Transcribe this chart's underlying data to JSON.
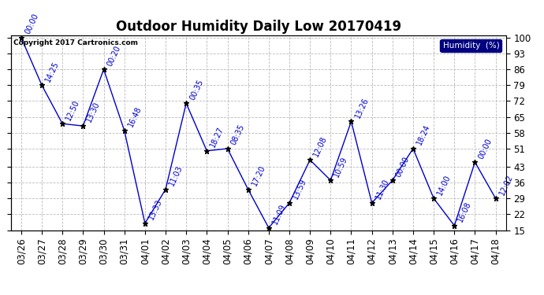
{
  "title": "Outdoor Humidity Daily Low 20170419",
  "copyright": "Copyright 2017 Cartronics.com",
  "legend_label": "Humidity  (%)",
  "ylabel_right": [
    "100",
    "93",
    "86",
    "79",
    "72",
    "65",
    "58",
    "51",
    "43",
    "36",
    "29",
    "22",
    "15"
  ],
  "ylim": [
    15,
    101
  ],
  "yticks": [
    15,
    22,
    29,
    36,
    43,
    51,
    58,
    65,
    72,
    79,
    86,
    93,
    100
  ],
  "dates": [
    "03/26",
    "03/27",
    "03/28",
    "03/29",
    "03/30",
    "03/31",
    "04/01",
    "04/02",
    "04/03",
    "04/04",
    "04/05",
    "04/06",
    "04/07",
    "04/08",
    "04/09",
    "04/10",
    "04/11",
    "04/12",
    "04/13",
    "04/14",
    "04/15",
    "04/16",
    "04/17",
    "04/18"
  ],
  "values": [
    100,
    79,
    62,
    61,
    86,
    59,
    18,
    33,
    71,
    50,
    51,
    33,
    16,
    27,
    46,
    37,
    63,
    27,
    37,
    51,
    29,
    17,
    45,
    29
  ],
  "times": [
    "00:00",
    "14:25",
    "12:50",
    "13:30",
    "00:20",
    "16:48",
    "13:33",
    "11:03",
    "00:35",
    "18:27",
    "08:35",
    "17:20",
    "11:09",
    "13:59",
    "12:08",
    "10:59",
    "13:26",
    "11:30",
    "00:00",
    "18:24",
    "14:00",
    "16:08",
    "00:00",
    "12:02"
  ],
  "line_color": "#0000cc",
  "marker_color": "#000000",
  "bg_color": "#ffffff",
  "plot_bg_color": "#ffffff",
  "grid_color": "#bbbbbb",
  "title_color": "#000000",
  "copyright_color": "#000000",
  "legend_bg": "#000080",
  "legend_fg": "#ffffff",
  "annotation_color": "#0000cc",
  "annotation_fontsize": 7,
  "title_fontsize": 12,
  "tick_fontsize": 8.5
}
